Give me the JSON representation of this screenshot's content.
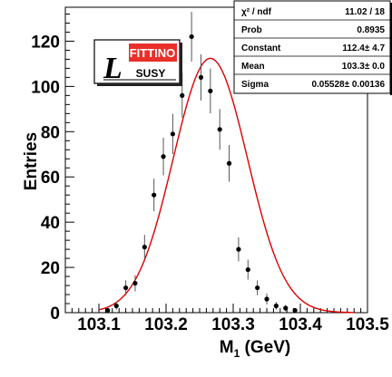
{
  "chart_data": {
    "type": "scatter",
    "xlabel_main": "M",
    "xlabel_sub": "1",
    "xlabel_rest": " (GeV)",
    "ylabel": "Entries",
    "xlim": [
      103.05,
      103.5
    ],
    "ylim": [
      0,
      135
    ],
    "x_ticks": [
      "103.1",
      "103.2",
      "103.3",
      "103.4",
      "103.5"
    ],
    "x_tick_values": [
      103.1,
      103.2,
      103.3,
      103.4,
      103.5
    ],
    "y_ticks": [
      "0",
      "20",
      "40",
      "60",
      "80",
      "100",
      "120"
    ],
    "y_tick_values": [
      0,
      20,
      40,
      60,
      80,
      100,
      120
    ],
    "points": [
      {
        "x": 103.113,
        "y": 1,
        "err": 1
      },
      {
        "x": 103.126,
        "y": 3,
        "err": 1.7
      },
      {
        "x": 103.14,
        "y": 11,
        "err": 3.3
      },
      {
        "x": 103.154,
        "y": 13,
        "err": 3.6
      },
      {
        "x": 103.168,
        "y": 29,
        "err": 5.4
      },
      {
        "x": 103.182,
        "y": 52,
        "err": 7.2
      },
      {
        "x": 103.196,
        "y": 69,
        "err": 8.3
      },
      {
        "x": 103.21,
        "y": 79,
        "err": 8.9
      },
      {
        "x": 103.224,
        "y": 96,
        "err": 9.8
      },
      {
        "x": 103.238,
        "y": 122,
        "err": 11
      },
      {
        "x": 103.252,
        "y": 104,
        "err": 10.2
      },
      {
        "x": 103.266,
        "y": 98,
        "err": 9.9
      },
      {
        "x": 103.28,
        "y": 81,
        "err": 9
      },
      {
        "x": 103.294,
        "y": 66,
        "err": 8.1
      },
      {
        "x": 103.308,
        "y": 28,
        "err": 5.3
      },
      {
        "x": 103.322,
        "y": 19,
        "err": 4.4
      },
      {
        "x": 103.336,
        "y": 11,
        "err": 3.3
      },
      {
        "x": 103.35,
        "y": 6,
        "err": 2.4
      },
      {
        "x": 103.364,
        "y": 3,
        "err": 1.7
      },
      {
        "x": 103.378,
        "y": 2,
        "err": 1.4
      },
      {
        "x": 103.392,
        "y": 1,
        "err": 1
      }
    ],
    "fit": {
      "function": "gaussian",
      "constant": 112.4,
      "mean": 103.266,
      "sigma": 0.05528,
      "color": "#dd0000"
    },
    "point_color": "#000000",
    "errorbar_color": "#555555"
  },
  "stats_box": {
    "rows": [
      {
        "label": "χ² / ndf",
        "value": "11.02 / 18"
      },
      {
        "label": "Prob",
        "value": "0.8935"
      },
      {
        "label": "Constant",
        "value": "112.4± 4.7"
      },
      {
        "label": "Mean",
        "value": "103.3± 0.0"
      },
      {
        "label": "Sigma",
        "value": "0.05528± 0.00136"
      }
    ]
  },
  "logo": {
    "script_letter": "L",
    "top_text": "FITTINO",
    "bottom_text": "SUSY",
    "red_color": "#e8302a"
  }
}
